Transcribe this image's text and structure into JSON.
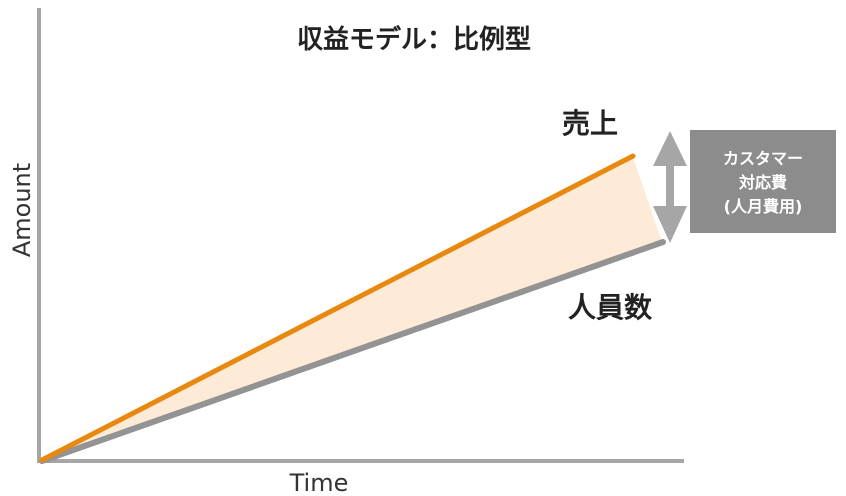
{
  "diagram": {
    "title": "収益モデル：比例型",
    "x_axis_label": "Time",
    "y_axis_label": "Amount",
    "revenue_label": "売上",
    "headcount_label": "人員数",
    "cost_box": {
      "line1": "カスタマー",
      "line2": "対応費",
      "line3": "(人月費用)"
    },
    "colors": {
      "revenue_line": "#e8880f",
      "headcount_line": "#939393",
      "gap_fill": "#fdebd8",
      "axis": "#a6a6a6",
      "arrow": "#a6a6a6",
      "cost_box_bg": "#8c8c8c"
    }
  }
}
